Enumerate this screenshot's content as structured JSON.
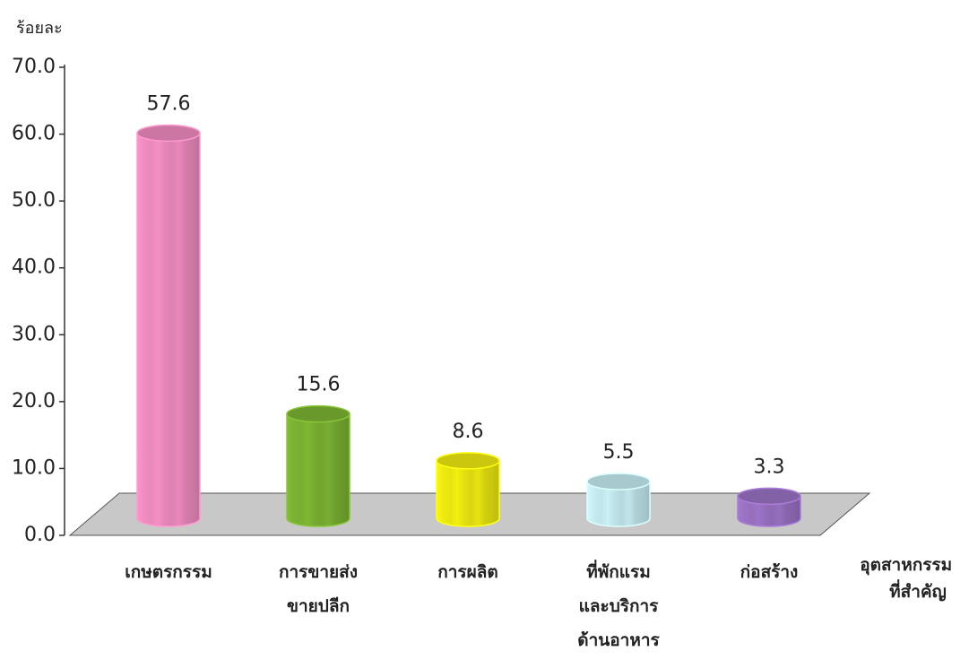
{
  "chart_data": {
    "type": "bar",
    "y_label": "ร้อยละ",
    "x_label": [
      "อุตสาหกรรม",
      "ที่สำคัญ"
    ],
    "categories": [
      [
        "เกษตรกรรม"
      ],
      [
        "การขายส่ง",
        "ขายปลีก"
      ],
      [
        "การผลิต"
      ],
      [
        "ที่พักแรม",
        "และบริการ",
        "ด้านอาหาร"
      ],
      [
        "ก่อสร้าง"
      ]
    ],
    "values": [
      57.6,
      15.6,
      8.6,
      5.5,
      3.3
    ],
    "colors": [
      "#f08cc0",
      "#7cb332",
      "#eeea10",
      "#c6ecf2",
      "#9a72c4"
    ],
    "ylim": [
      0,
      70
    ],
    "yticks": [
      {
        "value": 0,
        "label": "0.0"
      },
      {
        "value": 10,
        "label": "10.0"
      },
      {
        "value": 20,
        "label": "20.0"
      },
      {
        "value": 30,
        "label": "30.0"
      },
      {
        "value": 40,
        "label": "40.0"
      },
      {
        "value": 50,
        "label": "50.0"
      },
      {
        "value": 60,
        "label": "60.0"
      },
      {
        "value": 70,
        "label": "70.0"
      }
    ],
    "grid": false
  }
}
